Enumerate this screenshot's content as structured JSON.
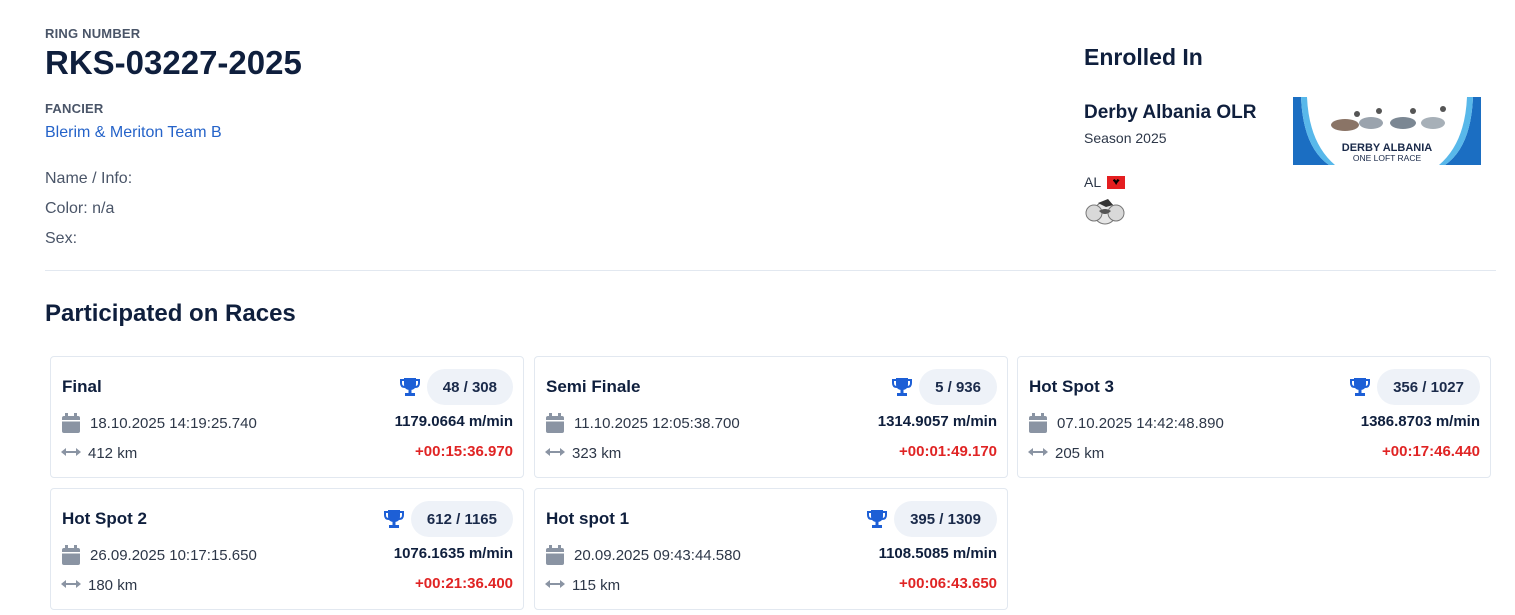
{
  "pigeon": {
    "ring_label": "RING NUMBER",
    "ring_number": "RKS-03227-2025",
    "fancier_label": "FANCIER",
    "fancier_name": "Blerim & Meriton Team B",
    "name_info_label": "Name / Info:",
    "name_info_value": "",
    "color_label": "Color:",
    "color_value": "n/a",
    "sex_label": "Sex:",
    "sex_value": ""
  },
  "enrolled": {
    "title": "Enrolled In",
    "race_name": "Derby Albania OLR",
    "season": "Season 2025",
    "country": "AL",
    "logo_line1": "DERBY ALBANIA",
    "logo_line2": "ONE LOFT RACE"
  },
  "races_section": {
    "title": "Participated on Races",
    "races": [
      {
        "name": "Final",
        "rank": "48 / 308",
        "datetime": "18.10.2025 14:19:25.740",
        "speed": "1179.0664 m/min",
        "distance": "412 km",
        "delta": "+00:15:36.970"
      },
      {
        "name": "Semi Finale",
        "rank": "5 / 936",
        "datetime": "11.10.2025 12:05:38.700",
        "speed": "1314.9057 m/min",
        "distance": "323 km",
        "delta": "+00:01:49.170"
      },
      {
        "name": "Hot Spot 3",
        "rank": "356 / 1027",
        "datetime": "07.10.2025 14:42:48.890",
        "speed": "1386.8703 m/min",
        "distance": "205 km",
        "delta": "+00:17:46.440"
      },
      {
        "name": "Hot Spot 2",
        "rank": "612 / 1165",
        "datetime": "26.09.2025 10:17:15.650",
        "speed": "1076.1635 m/min",
        "distance": "180 km",
        "delta": "+00:21:36.400"
      },
      {
        "name": "Hot spot 1",
        "rank": "395 / 1309",
        "datetime": "20.09.2025 09:43:44.580",
        "speed": "1108.5085 m/min",
        "distance": "115 km",
        "delta": "+00:06:43.650"
      }
    ]
  },
  "colors": {
    "accent_blue": "#2563c9",
    "trophy_blue": "#1d5fd6",
    "delta_red": "#e02424",
    "title_dark": "#0f1f3d"
  },
  "icons": {
    "trophy": "trophy-icon",
    "calendar": "calendar-icon",
    "distance": "arrows-horizontal-icon"
  }
}
